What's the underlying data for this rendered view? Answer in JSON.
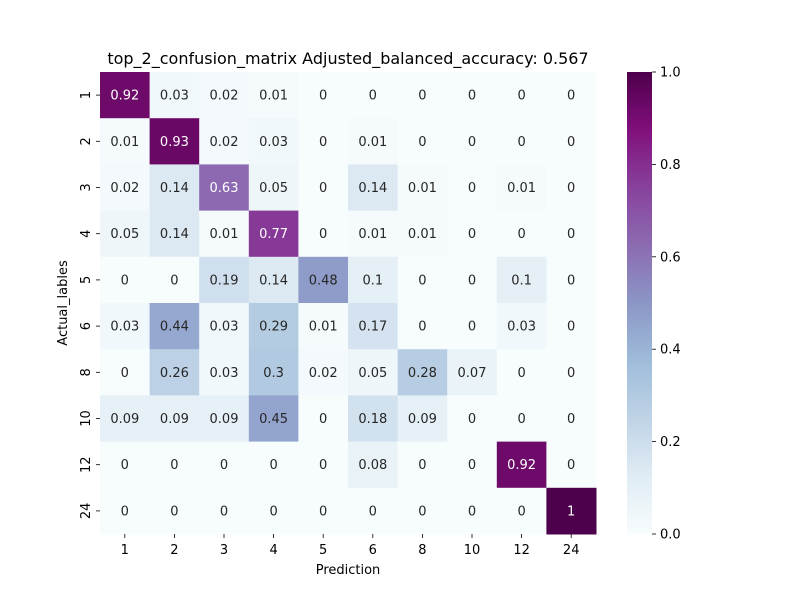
{
  "chart_data": {
    "type": "heatmap",
    "title": "top_2_confusion_matrix Adjusted_balanced_accuracy: 0.567",
    "xlabel": "Prediction",
    "ylabel": "Actual_lables",
    "x_categories": [
      "1",
      "2",
      "3",
      "4",
      "5",
      "6",
      "8",
      "10",
      "12",
      "24"
    ],
    "y_categories": [
      "1",
      "2",
      "3",
      "4",
      "5",
      "6",
      "8",
      "10",
      "12",
      "24"
    ],
    "values": [
      [
        0.92,
        0.03,
        0.02,
        0.01,
        0,
        0,
        0,
        0,
        0,
        0
      ],
      [
        0.01,
        0.93,
        0.02,
        0.03,
        0,
        0.01,
        0,
        0,
        0,
        0
      ],
      [
        0.02,
        0.14,
        0.63,
        0.05,
        0,
        0.14,
        0.01,
        0,
        0.01,
        0
      ],
      [
        0.05,
        0.14,
        0.01,
        0.77,
        0,
        0.01,
        0.01,
        0,
        0,
        0
      ],
      [
        0,
        0,
        0.19,
        0.14,
        0.48,
        0.1,
        0,
        0,
        0.1,
        0
      ],
      [
        0.03,
        0.44,
        0.03,
        0.29,
        0.01,
        0.17,
        0,
        0,
        0.03,
        0
      ],
      [
        0,
        0.26,
        0.03,
        0.3,
        0.02,
        0.05,
        0.28,
        0.07,
        0,
        0
      ],
      [
        0.09,
        0.09,
        0.09,
        0.45,
        0,
        0.18,
        0.09,
        0,
        0,
        0
      ],
      [
        0,
        0,
        0,
        0,
        0,
        0.08,
        0,
        0,
        0.92,
        0
      ],
      [
        0,
        0,
        0,
        0,
        0,
        0,
        0,
        0,
        0,
        1
      ]
    ],
    "vmin": 0.0,
    "vmax": 1.0,
    "colormap": "BuPu",
    "colorbar_ticks": [
      "0.0",
      "0.2",
      "0.4",
      "0.6",
      "0.8",
      "1.0"
    ],
    "grid": false
  }
}
